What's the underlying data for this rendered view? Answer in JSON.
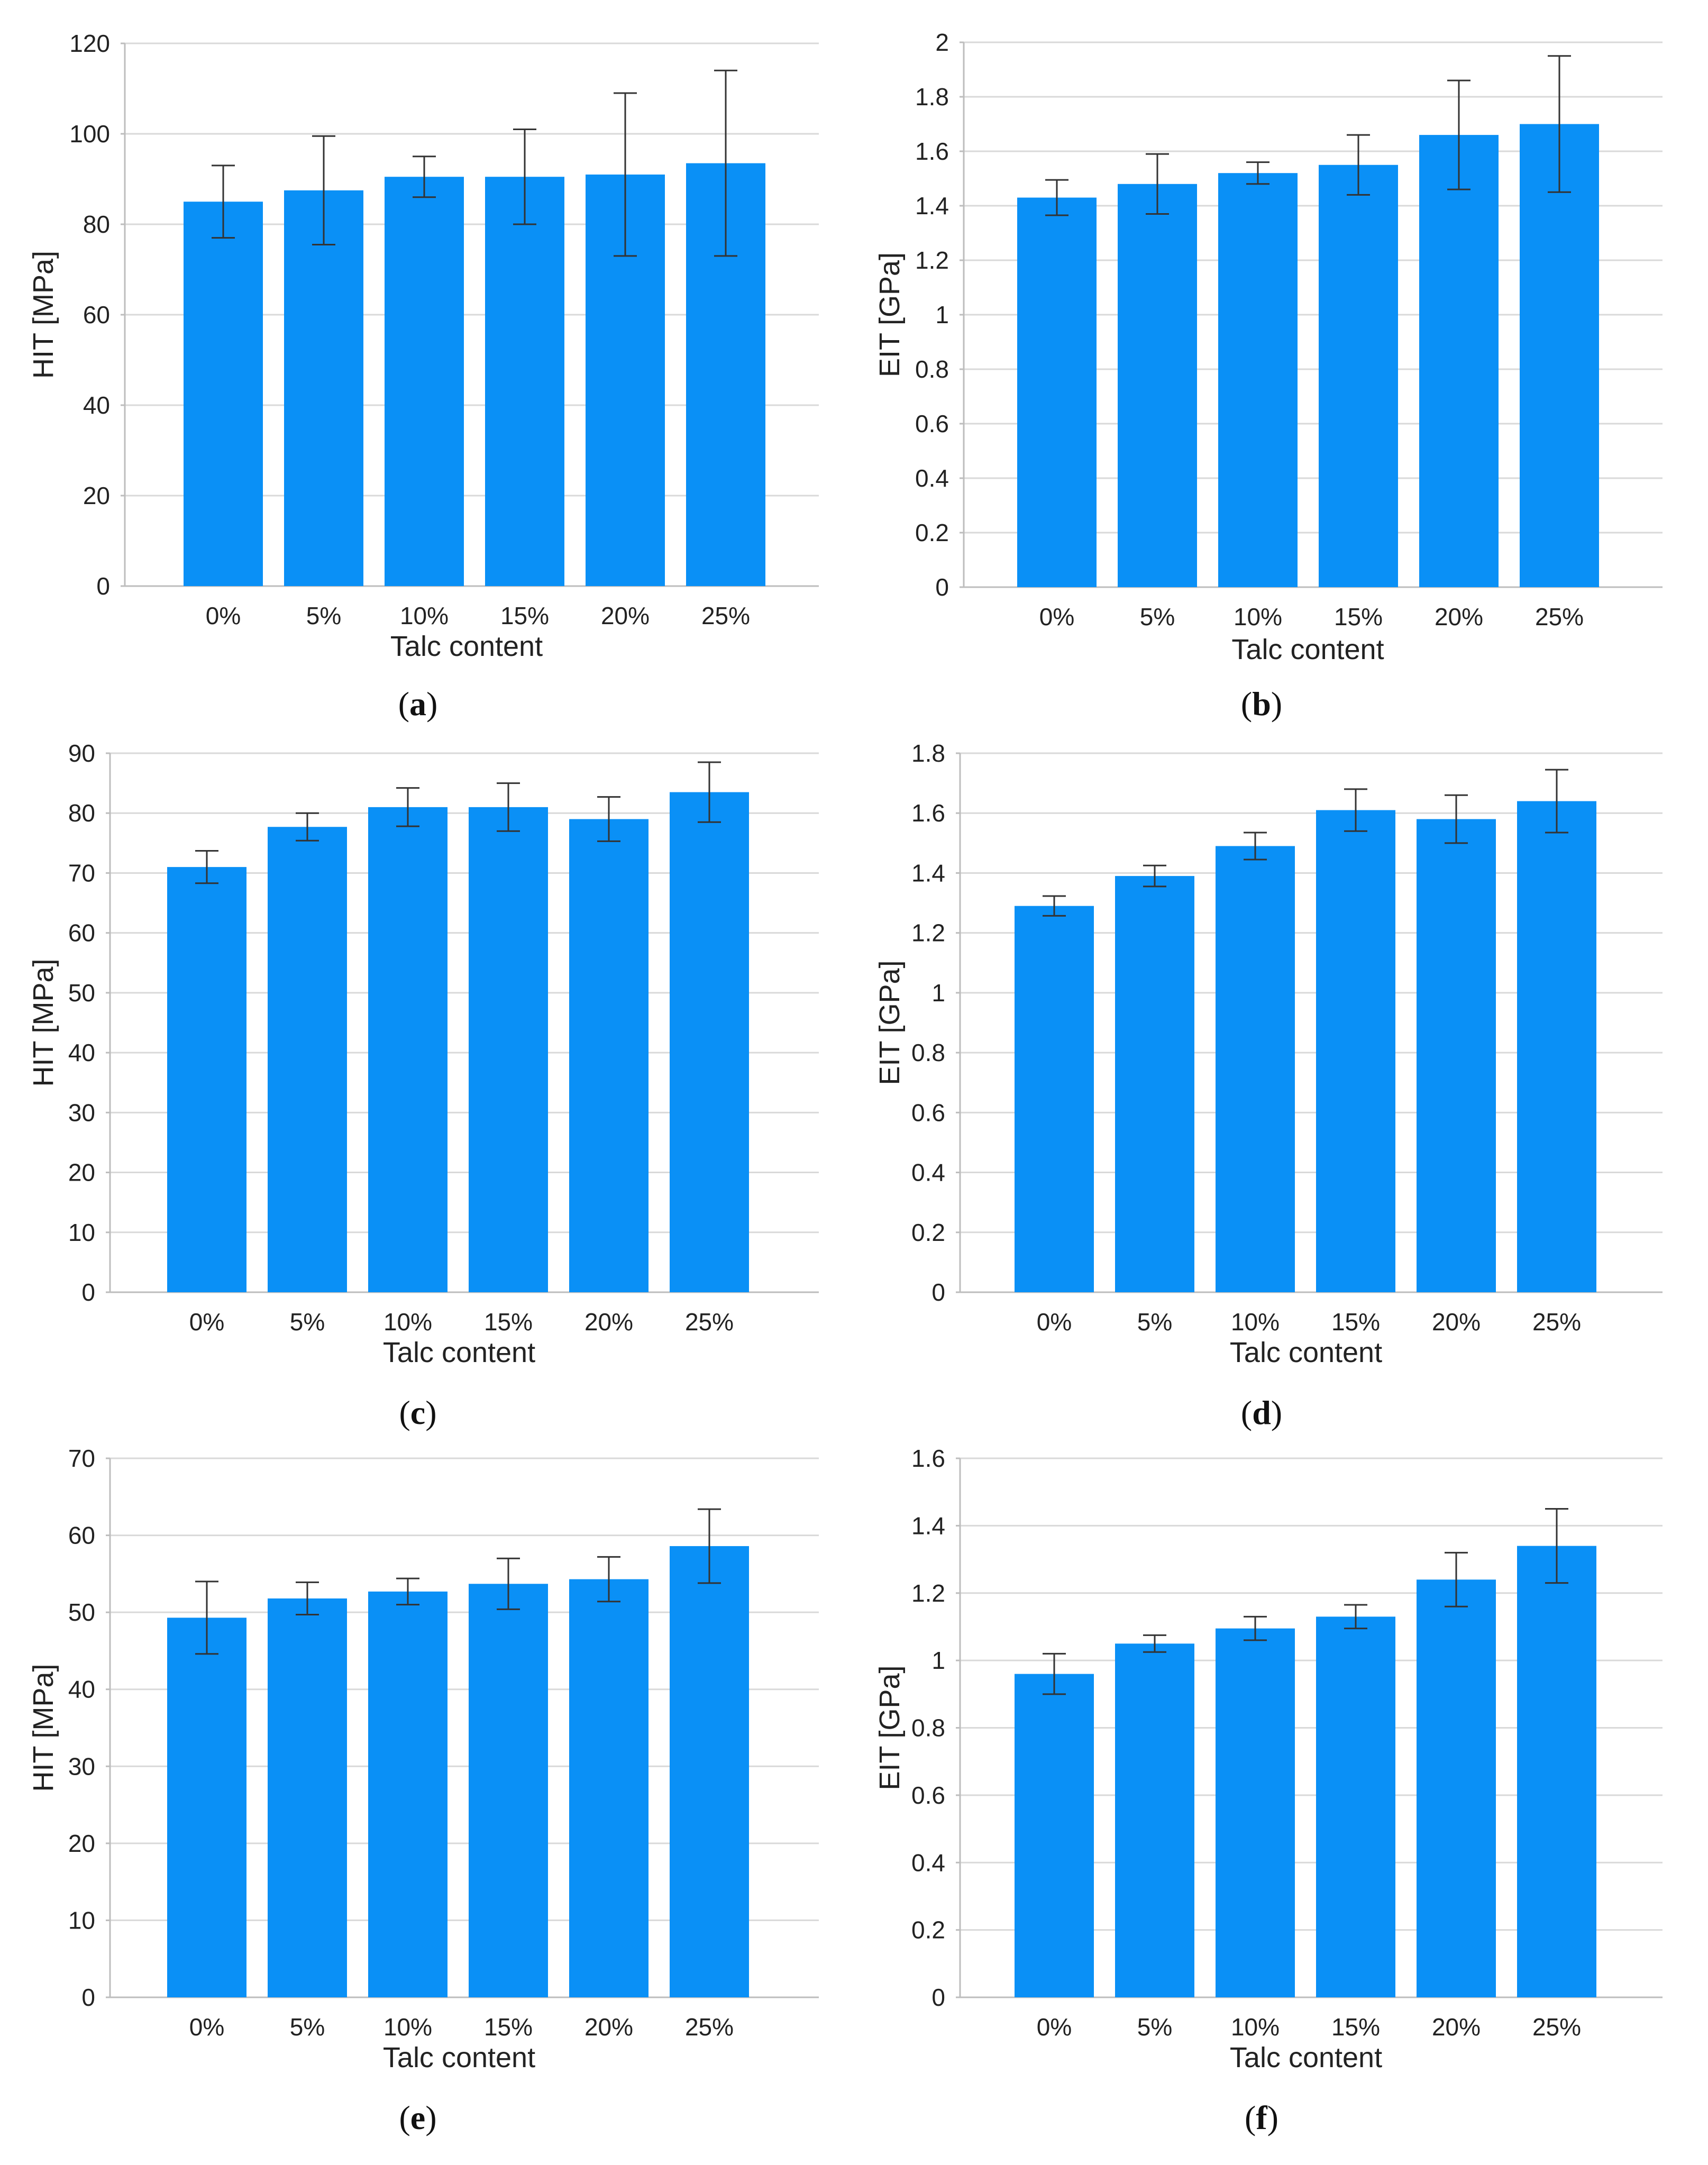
{
  "colors": {
    "bar": "#0a90f6",
    "grid": "#d9d9d9",
    "axis": "#bdbdbd",
    "errorbar": "#333333"
  },
  "chart_data": [
    {
      "id": "a",
      "type": "bar",
      "panel_label": "a",
      "xlabel": "Talc content",
      "ylabel": "HIT [MPa]",
      "categories": [
        "0%",
        "5%",
        "10%",
        "15%",
        "20%",
        "25%"
      ],
      "values": [
        85,
        87.5,
        90.5,
        90.5,
        91,
        93.5
      ],
      "errors": [
        8,
        12,
        4.5,
        10.5,
        18,
        20.5
      ],
      "ylim": [
        0,
        120
      ],
      "yticks": [
        0,
        20,
        40,
        60,
        80,
        100,
        120
      ],
      "ytick_labels": [
        "0",
        "20",
        "40",
        "60",
        "80",
        "100",
        "120"
      ],
      "grid": true
    },
    {
      "id": "b",
      "type": "bar",
      "panel_label": "b",
      "xlabel": "Talc content",
      "ylabel": "EIT [GPa]",
      "categories": [
        "0%",
        "5%",
        "10%",
        "15%",
        "20%",
        "25%"
      ],
      "values": [
        1.43,
        1.48,
        1.52,
        1.55,
        1.66,
        1.7
      ],
      "errors": [
        0.065,
        0.11,
        0.04,
        0.11,
        0.2,
        0.25
      ],
      "ylim": [
        0,
        2
      ],
      "yticks": [
        0,
        0.2,
        0.4,
        0.6,
        0.8,
        1,
        1.2,
        1.4,
        1.6,
        1.8,
        2
      ],
      "ytick_labels": [
        "0",
        "0.2",
        "0.4",
        "0.6",
        "0.8",
        "1",
        "1.2",
        "1.4",
        "1.6",
        "1.8",
        "2"
      ],
      "grid": true
    },
    {
      "id": "c",
      "type": "bar",
      "panel_label": "c",
      "xlabel": "Talc content",
      "ylabel": "HIT [MPa]",
      "categories": [
        "0%",
        "5%",
        "10%",
        "15%",
        "20%",
        "25%"
      ],
      "values": [
        71,
        77.7,
        81,
        81,
        79,
        83.5
      ],
      "errors": [
        2.7,
        2.3,
        3.2,
        4,
        3.7,
        5
      ],
      "ylim": [
        0,
        90
      ],
      "yticks": [
        0,
        10,
        20,
        30,
        40,
        50,
        60,
        70,
        80,
        90
      ],
      "ytick_labels": [
        "0",
        "10",
        "20",
        "30",
        "40",
        "50",
        "60",
        "70",
        "80",
        "90"
      ],
      "grid": true
    },
    {
      "id": "d",
      "type": "bar",
      "panel_label": "d",
      "xlabel": "Talc content",
      "ylabel": "EIT [GPa]",
      "categories": [
        "0%",
        "5%",
        "10%",
        "15%",
        "20%",
        "25%"
      ],
      "values": [
        1.29,
        1.39,
        1.49,
        1.61,
        1.58,
        1.64
      ],
      "errors": [
        0.033,
        0.035,
        0.045,
        0.07,
        0.08,
        0.105
      ],
      "ylim": [
        0,
        1.8
      ],
      "yticks": [
        0,
        0.2,
        0.4,
        0.6,
        0.8,
        1,
        1.2,
        1.4,
        1.6,
        1.8
      ],
      "ytick_labels": [
        "0",
        "0.2",
        "0.4",
        "0.6",
        "0.8",
        "1",
        "1.2",
        "1.4",
        "1.6",
        "1.8"
      ],
      "grid": true
    },
    {
      "id": "e",
      "type": "bar",
      "panel_label": "e",
      "xlabel": "Talc content",
      "ylabel": "HIT [MPa]",
      "categories": [
        "0%",
        "5%",
        "10%",
        "15%",
        "20%",
        "25%"
      ],
      "values": [
        49.3,
        51.8,
        52.7,
        53.7,
        54.3,
        58.6
      ],
      "errors": [
        4.7,
        2.1,
        1.7,
        3.3,
        2.9,
        4.8
      ],
      "ylim": [
        0,
        70
      ],
      "yticks": [
        0,
        10,
        20,
        30,
        40,
        50,
        60,
        70
      ],
      "ytick_labels": [
        "0",
        "10",
        "20",
        "30",
        "40",
        "50",
        "60",
        "70"
      ],
      "grid": true
    },
    {
      "id": "f",
      "type": "bar",
      "panel_label": "f",
      "xlabel": "Talc content",
      "ylabel": "EIT [GPa]",
      "categories": [
        "0%",
        "5%",
        "10%",
        "15%",
        "20%",
        "25%"
      ],
      "values": [
        0.96,
        1.05,
        1.095,
        1.13,
        1.24,
        1.34
      ],
      "errors": [
        0.06,
        0.025,
        0.035,
        0.035,
        0.08,
        0.11
      ],
      "ylim": [
        0,
        1.6
      ],
      "yticks": [
        0,
        0.2,
        0.4,
        0.6,
        0.8,
        1,
        1.2,
        1.4,
        1.6
      ],
      "ytick_labels": [
        "0",
        "0.2",
        "0.4",
        "0.6",
        "0.8",
        "1",
        "1.2",
        "1.4",
        "1.6"
      ],
      "grid": true
    }
  ]
}
